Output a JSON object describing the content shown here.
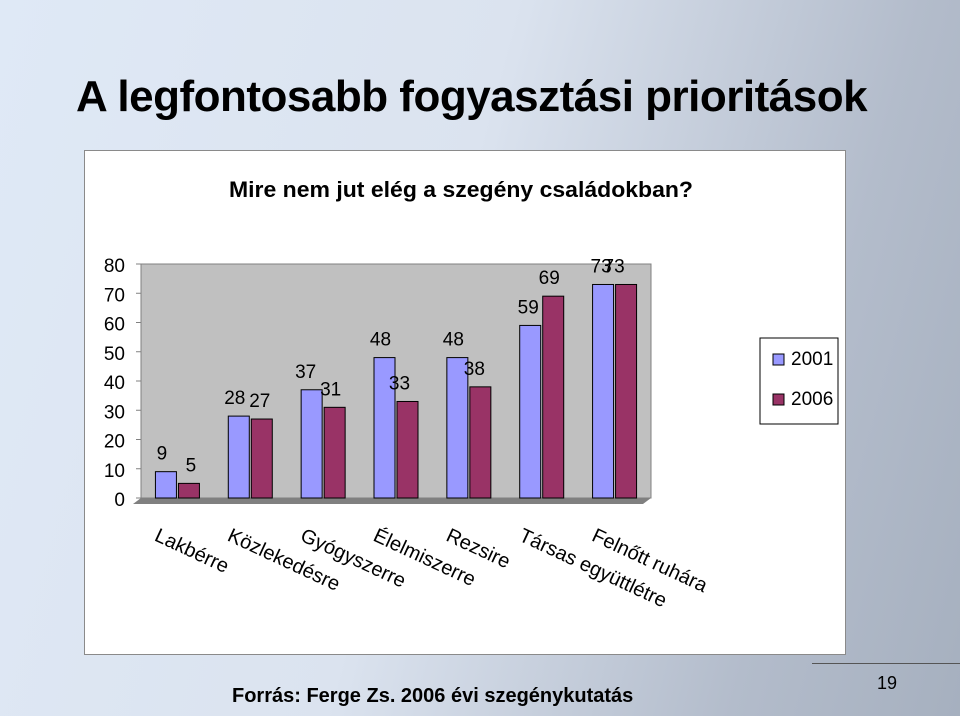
{
  "slide": {
    "title": "A legfontosabb fogyasztási  prioritások",
    "source": "Forrás: Ferge Zs. 2006 évi szegénykutatás",
    "page_number": "19"
  },
  "chart_data": {
    "type": "bar",
    "title": "Mire nem jut elég a szegény családokban?",
    "categories": [
      "Lakbérre",
      "Közlekedésre",
      "Gyógyszerre",
      "Élelmiszerre",
      "Rezsire",
      "Társas együttlétre",
      "Felnőtt ruhára"
    ],
    "series": [
      {
        "name": "2001",
        "color": "#9999ff",
        "values": [
          9,
          28,
          37,
          48,
          48,
          59,
          73
        ]
      },
      {
        "name": "2006",
        "color": "#993366",
        "values": [
          5,
          27,
          31,
          33,
          38,
          69,
          73
        ]
      }
    ],
    "ylim": [
      0,
      80
    ],
    "yticks": [
      0,
      10,
      20,
      30,
      40,
      50,
      60,
      70,
      80
    ],
    "legend": "right",
    "grid": false,
    "plot_bg": "#c0c0c0"
  }
}
